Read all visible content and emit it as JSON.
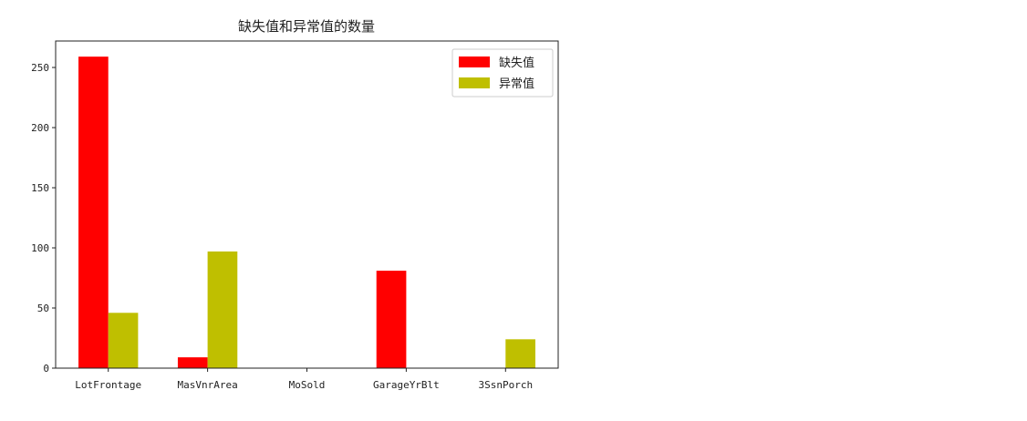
{
  "chart_data": {
    "type": "bar",
    "title": "缺失值和异常值的数量",
    "xlabel": "",
    "ylabel": "",
    "categories": [
      "LotFrontage",
      "MasVnrArea",
      "MoSold",
      "GarageYrBlt",
      "3SsnPorch"
    ],
    "series": [
      {
        "name": "缺失值",
        "color": "#ff0000",
        "values": [
          259,
          9,
          0,
          81,
          0
        ]
      },
      {
        "name": "异常值",
        "color": "#bfbf00",
        "values": [
          46,
          97,
          0,
          0,
          24
        ]
      }
    ],
    "ylim": [
      0,
      272
    ],
    "yticks": [
      0,
      50,
      100,
      150,
      200,
      250
    ],
    "grid": false,
    "legend": "top-right"
  }
}
